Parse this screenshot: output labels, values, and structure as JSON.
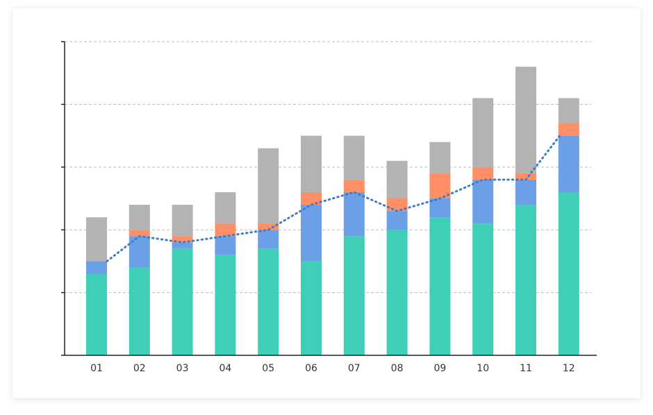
{
  "chart_data": {
    "type": "bar",
    "stacked": true,
    "title": "",
    "xlabel": "",
    "ylabel": "",
    "categories": [
      "01",
      "02",
      "03",
      "04",
      "05",
      "06",
      "07",
      "08",
      "09",
      "10",
      "11",
      "12"
    ],
    "ylim": [
      0,
      50
    ],
    "y_ticks": [
      0,
      10,
      20,
      30,
      40,
      50
    ],
    "y_tick_labels_visible": false,
    "grid": true,
    "legend": "none",
    "series": [
      {
        "color": "#3ecfb6",
        "values": [
          13,
          14,
          17,
          16,
          17,
          15,
          19,
          20,
          22,
          21,
          24,
          26
        ]
      },
      {
        "color": "#6b9fe6",
        "values": [
          2,
          5,
          1,
          3,
          3,
          9,
          7,
          3,
          3,
          7,
          4,
          9
        ]
      },
      {
        "color": "#ff8f66",
        "values": [
          0,
          1,
          1,
          2,
          1,
          2,
          2,
          2,
          4,
          2,
          1,
          2
        ]
      },
      {
        "color": "#b3b3b3",
        "values": [
          7,
          4,
          5,
          5,
          12,
          9,
          7,
          6,
          5,
          11,
          17,
          4
        ]
      }
    ],
    "line": {
      "style": "dotted",
      "color": "#3d7cc9",
      "values": [
        15,
        19,
        18,
        19,
        20,
        24,
        26,
        23,
        25,
        28,
        28,
        35
      ]
    }
  }
}
